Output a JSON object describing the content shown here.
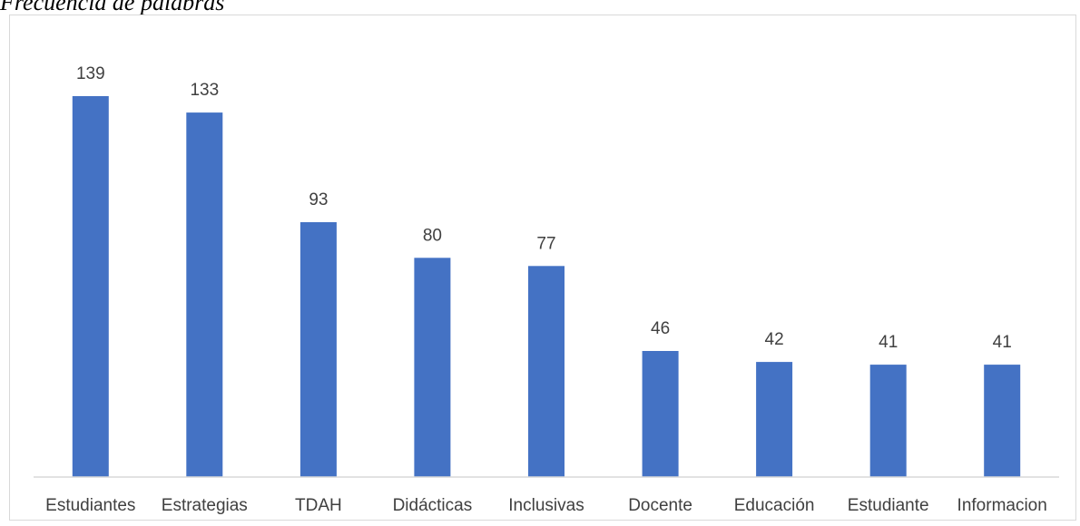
{
  "figure_title": "Frecuencia de palabras",
  "chart_data": {
    "type": "bar",
    "categories": [
      "Estudiantes",
      "Estrategias",
      "TDAH",
      "Didácticas",
      "Inclusivas",
      "Docente",
      "Educación",
      "Estudiante",
      "Informacion"
    ],
    "values": [
      139,
      133,
      93,
      80,
      77,
      46,
      42,
      41,
      41
    ],
    "title": "",
    "xlabel": "",
    "ylabel": "",
    "ylim": [
      0,
      150
    ],
    "grid": false,
    "legend": "none",
    "bar_color": "#4472c4",
    "data_labels": true
  }
}
